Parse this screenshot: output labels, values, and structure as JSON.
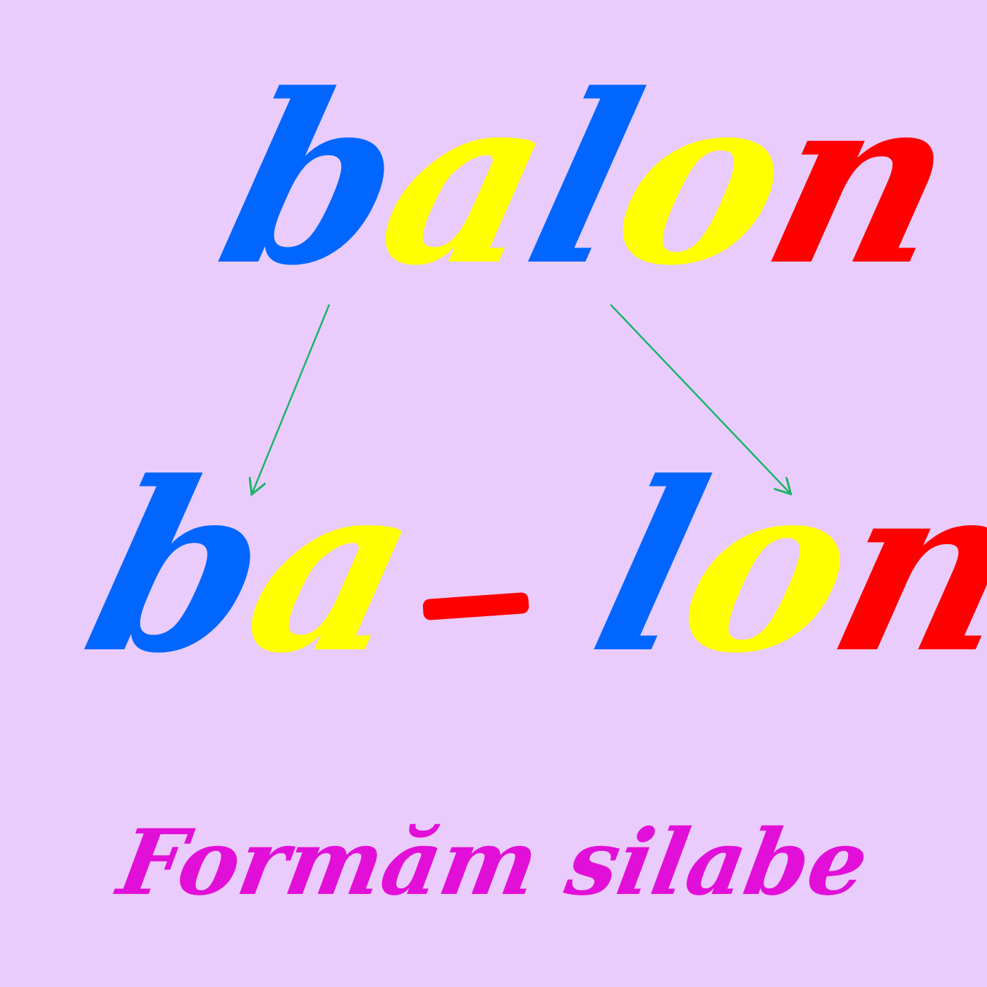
{
  "top_word": {
    "letters": [
      {
        "char": "b",
        "color": "#0066ff"
      },
      {
        "char": "a",
        "color": "#ffff00"
      },
      {
        "char": "l",
        "color": "#0066ff"
      },
      {
        "char": "o",
        "color": "#ffff00"
      },
      {
        "char": "n",
        "color": "#ff0000"
      }
    ]
  },
  "syllables": [
    {
      "letters": [
        {
          "char": "b",
          "color": "#0066ff"
        },
        {
          "char": "a",
          "color": "#ffff00"
        }
      ]
    },
    {
      "letters": [
        {
          "char": "l",
          "color": "#0066ff"
        },
        {
          "char": "o",
          "color": "#ffff00"
        },
        {
          "char": "n",
          "color": "#ff0000"
        }
      ]
    }
  ],
  "separator": {
    "color": "#ff0000"
  },
  "arrows": {
    "color": "#19b466"
  },
  "caption": {
    "text": "Formăm silabe",
    "color": "#e20fd8"
  },
  "colors": {
    "background": "#e9ccfc"
  }
}
